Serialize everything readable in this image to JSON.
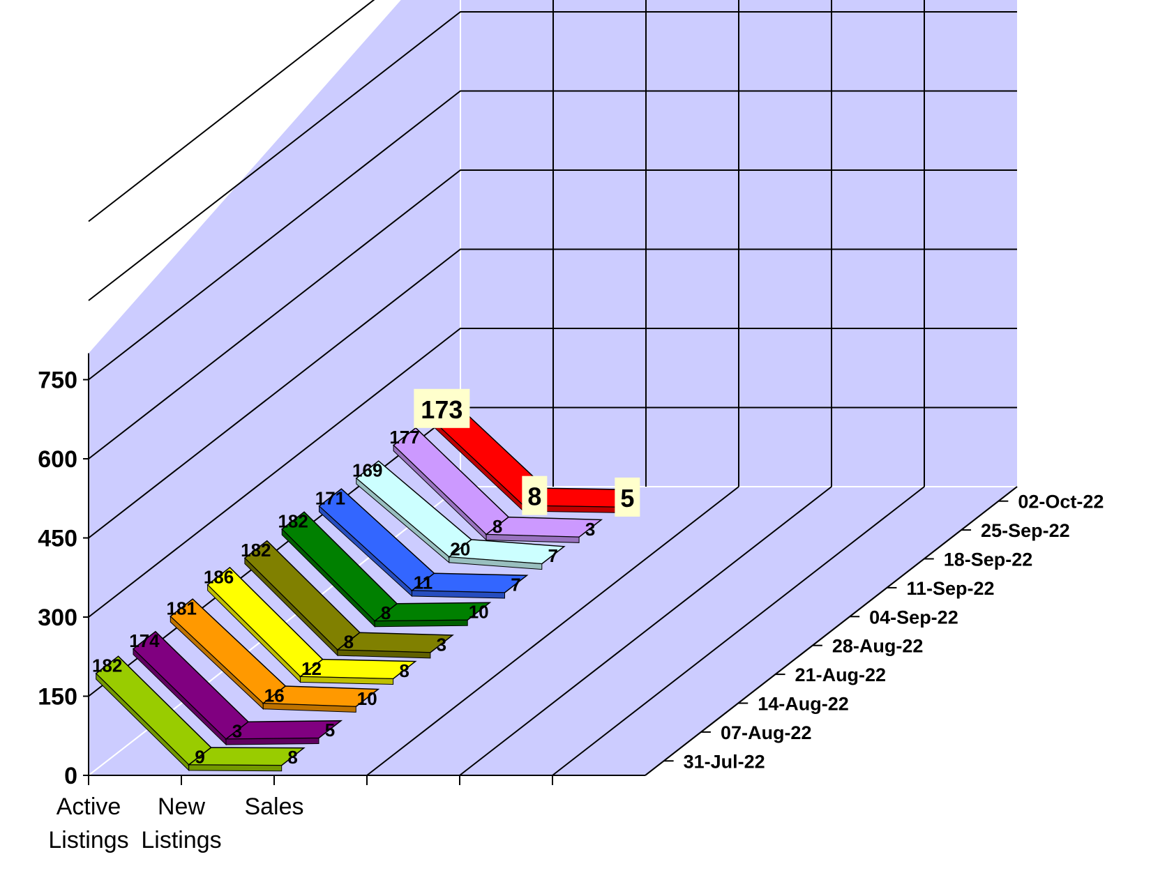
{
  "chart_data": {
    "type": "line",
    "style": "3d-ribbon",
    "categories": [
      "Active Listings",
      "New Listings",
      "Sales"
    ],
    "category_lines": [
      [
        "Active",
        "Listings"
      ],
      [
        "New",
        "Listings"
      ],
      [
        "Sales"
      ]
    ],
    "ylim": [
      0,
      750
    ],
    "yticks": [
      "0",
      "150",
      "300",
      "450",
      "600",
      "750"
    ],
    "ytick_values": [
      0,
      150,
      300,
      450,
      600,
      750
    ],
    "grid": true,
    "highlight_latest_series": true,
    "series": [
      {
        "name": "31-Jul-22",
        "color": "#99cc00",
        "values": [
          182,
          9,
          8
        ]
      },
      {
        "name": "07-Aug-22",
        "color": "#800080",
        "values": [
          174,
          3,
          5
        ]
      },
      {
        "name": "14-Aug-22",
        "color": "#ff9900",
        "values": [
          181,
          16,
          10
        ]
      },
      {
        "name": "21-Aug-22",
        "color": "#ffff00",
        "values": [
          186,
          12,
          8
        ]
      },
      {
        "name": "28-Aug-22",
        "color": "#808000",
        "values": [
          182,
          8,
          3
        ]
      },
      {
        "name": "04-Sep-22",
        "color": "#008000",
        "values": [
          182,
          8,
          10
        ]
      },
      {
        "name": "11-Sep-22",
        "color": "#3366ff",
        "values": [
          171,
          11,
          7
        ]
      },
      {
        "name": "18-Sep-22",
        "color": "#ccffff",
        "values": [
          169,
          20,
          7
        ]
      },
      {
        "name": "25-Sep-22",
        "color": "#cc99ff",
        "values": [
          177,
          8,
          3
        ]
      },
      {
        "name": "02-Oct-22",
        "color": "#ff0000",
        "values": [
          173,
          8,
          5
        ]
      }
    ],
    "colors": {
      "wall": "#ccccff",
      "label_highlight_bg": "#ffffcc"
    }
  }
}
